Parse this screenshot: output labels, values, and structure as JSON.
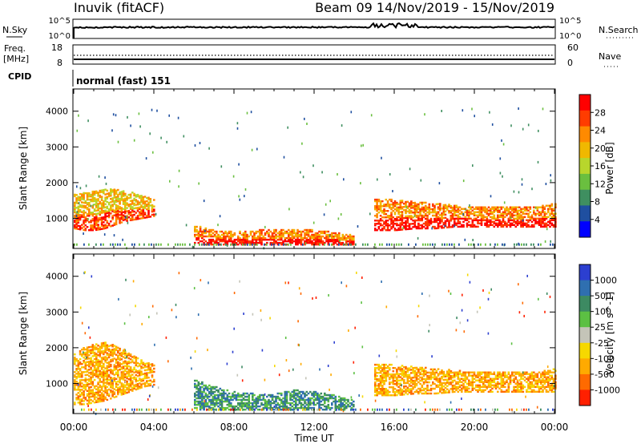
{
  "header": {
    "station": "Inuvik (fitACF)",
    "beam_info": "Beam 09   14/Nov/2019 - 15/Nov/2019"
  },
  "top_panels": {
    "nsky_label": "N.Sky",
    "nsearch_label": "N.Search",
    "nsky_ticks": [
      "10^5",
      "10^0"
    ],
    "nsearch_ticks": [
      "10^5",
      "10^0"
    ],
    "freq_label_1": "Freq.",
    "freq_label_2": "[MHz]",
    "freq_ticks": [
      "18",
      "8"
    ],
    "nave_label": "Nave",
    "nave_ticks": [
      "60",
      "0"
    ],
    "cpid_label": "CPID",
    "cpid_value": "normal (fast) 151"
  },
  "colors": {
    "power_scale": [
      "#0000ff",
      "#1f4fa0",
      "#3f8f60",
      "#6abf3f",
      "#b8d62c",
      "#f0b800",
      "#ff8a00",
      "#ff3c00",
      "#ff0000"
    ],
    "velocity_scale": [
      "#2c3fd0",
      "#2f6fb0",
      "#3d8a62",
      "#5cc043",
      "#c4c4b8",
      "#f6d800",
      "#ffaa00",
      "#ff6a00",
      "#ff2000"
    ]
  },
  "chart_data": [
    {
      "type": "heatmap",
      "title": "",
      "xlabel": "",
      "ylabel": "Slant Range [km]",
      "x_ticks": [
        "00:00",
        "04:00",
        "08:00",
        "12:00",
        "16:00",
        "20:00",
        "00:00"
      ],
      "y_ticks": [
        1000,
        2000,
        3000,
        4000
      ],
      "ylim": [
        180,
        4600
      ],
      "colorbar_label": "Power [dB]",
      "colorbar_ticks": [
        "4",
        "8",
        "12",
        "16",
        "20",
        "24",
        "28"
      ],
      "colorbar_range": [
        0,
        30
      ],
      "series": [
        {
          "t": [
            0.0,
            0.5,
            1.0,
            1.5,
            2.0,
            2.5,
            3.0,
            3.5,
            4.0
          ],
          "range_low": [
            700,
            650,
            650,
            700,
            800,
            900,
            950,
            1000,
            1050
          ],
          "range_high": [
            1650,
            1700,
            1750,
            1800,
            1800,
            1750,
            1700,
            1600,
            1500
          ],
          "power": 18
        },
        {
          "t": [
            6.0,
            7.0,
            8.0,
            9.0,
            10.0,
            11.0,
            12.0,
            13.0,
            14.0
          ],
          "range_low": [
            250,
            250,
            250,
            250,
            250,
            250,
            250,
            250,
            250
          ],
          "range_high": [
            800,
            650,
            600,
            650,
            700,
            700,
            650,
            600,
            500
          ],
          "power": 24
        },
        {
          "t": [
            15.0,
            16.0,
            17.0,
            18.0,
            19.0,
            20.0,
            21.0,
            22.0,
            23.0,
            24.0
          ],
          "range_low": [
            650,
            650,
            700,
            700,
            750,
            750,
            750,
            750,
            750,
            750
          ],
          "range_high": [
            1550,
            1500,
            1450,
            1400,
            1350,
            1300,
            1300,
            1300,
            1300,
            1400
          ],
          "power": 22
        }
      ]
    },
    {
      "type": "heatmap",
      "title": "",
      "xlabel": "Time UT",
      "ylabel": "Slant Range [km]",
      "x_ticks": [
        "00:00",
        "04:00",
        "08:00",
        "12:00",
        "16:00",
        "20:00",
        "00:00"
      ],
      "y_ticks": [
        1000,
        2000,
        3000,
        4000
      ],
      "ylim": [
        180,
        4600
      ],
      "colorbar_label": "Velocity [m s^-1]",
      "colorbar_ticks": [
        "1000",
        "500",
        "100",
        "25",
        "-25",
        "-100",
        "-500",
        "-1000"
      ],
      "colorbar_range": [
        -1000,
        1000
      ],
      "series": [
        {
          "t": [
            0.0,
            0.5,
            1.0,
            1.5,
            2.0,
            2.5,
            3.0,
            3.5,
            4.0
          ],
          "range_low": [
            400,
            400,
            450,
            500,
            600,
            700,
            800,
            900,
            950
          ],
          "range_high": [
            1800,
            2000,
            2100,
            2150,
            2050,
            1900,
            1750,
            1600,
            1500
          ],
          "velocity": -200
        },
        {
          "t": [
            6.0,
            7.0,
            8.0,
            9.0,
            10.0,
            11.0,
            12.0,
            13.0,
            14.0
          ],
          "range_low": [
            250,
            250,
            250,
            250,
            250,
            250,
            250,
            250,
            250
          ],
          "range_high": [
            1100,
            900,
            750,
            700,
            700,
            800,
            750,
            650,
            500
          ],
          "velocity": 80
        },
        {
          "t": [
            15.0,
            16.0,
            17.0,
            18.0,
            19.0,
            20.0,
            21.0,
            22.0,
            23.0,
            24.0
          ],
          "range_low": [
            650,
            650,
            700,
            700,
            750,
            750,
            750,
            750,
            750,
            750
          ],
          "range_high": [
            1550,
            1500,
            1450,
            1400,
            1350,
            1300,
            1300,
            1300,
            1300,
            1400
          ],
          "velocity": -180
        }
      ]
    }
  ]
}
